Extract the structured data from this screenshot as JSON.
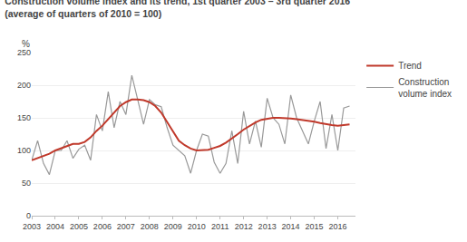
{
  "chart_data": {
    "type": "line",
    "title": "Construction volume index and its trend, 1st quarter 2003 – 3rd quarter 2016",
    "subtitle": "(average of quarters of 2010 = 100)",
    "y_label": "%",
    "x": [
      2003.0,
      2003.25,
      2003.5,
      2003.75,
      2004.0,
      2004.25,
      2004.5,
      2004.75,
      2005.0,
      2005.25,
      2005.5,
      2005.75,
      2006.0,
      2006.25,
      2006.5,
      2006.75,
      2007.0,
      2007.25,
      2007.5,
      2007.75,
      2008.0,
      2008.25,
      2008.5,
      2008.75,
      2009.0,
      2009.25,
      2009.5,
      2009.75,
      2010.0,
      2010.25,
      2010.5,
      2010.75,
      2011.0,
      2011.25,
      2011.5,
      2011.75,
      2012.0,
      2012.25,
      2012.5,
      2012.75,
      2013.0,
      2013.25,
      2013.5,
      2013.75,
      2014.0,
      2014.25,
      2014.5,
      2014.75,
      2015.0,
      2015.25,
      2015.5,
      2015.75,
      2016.0,
      2016.25,
      2016.5
    ],
    "series": [
      {
        "name": "Construction\nvolume index",
        "color": "#999999",
        "values": [
          85,
          115,
          80,
          63,
          100,
          100,
          115,
          88,
          102,
          108,
          85,
          155,
          130,
          190,
          135,
          175,
          155,
          215,
          178,
          140,
          178,
          170,
          167,
          135,
          108,
          100,
          92,
          65,
          100,
          125,
          122,
          82,
          65,
          80,
          130,
          80,
          160,
          110,
          145,
          105,
          180,
          150,
          140,
          110,
          185,
          150,
          130,
          110,
          145,
          175,
          103,
          155,
          100,
          165,
          168
        ]
      },
      {
        "name": "Trend",
        "color": "#c0392b",
        "values": [
          85,
          88,
          91,
          95,
          100,
          103,
          106,
          110,
          110,
          113,
          120,
          130,
          138,
          148,
          158,
          168,
          174,
          178,
          178,
          177,
          174,
          168,
          158,
          143,
          128,
          115,
          108,
          103,
          100,
          100,
          101,
          104,
          107,
          112,
          118,
          125,
          132,
          138,
          143,
          147,
          149,
          150,
          150,
          150,
          149,
          148,
          147,
          146,
          144,
          142,
          140,
          139,
          138,
          139,
          140
        ]
      }
    ],
    "xlim": [
      2003.0,
      2016.75
    ],
    "xticks": [
      2003,
      2004,
      2005,
      2006,
      2007,
      2008,
      2009,
      2010,
      2011,
      2012,
      2013,
      2014,
      2015,
      2016
    ],
    "ylim": [
      0,
      250
    ],
    "yticks": [
      0,
      50,
      100,
      150,
      200,
      250
    ],
    "grid": true,
    "legend": "right"
  }
}
